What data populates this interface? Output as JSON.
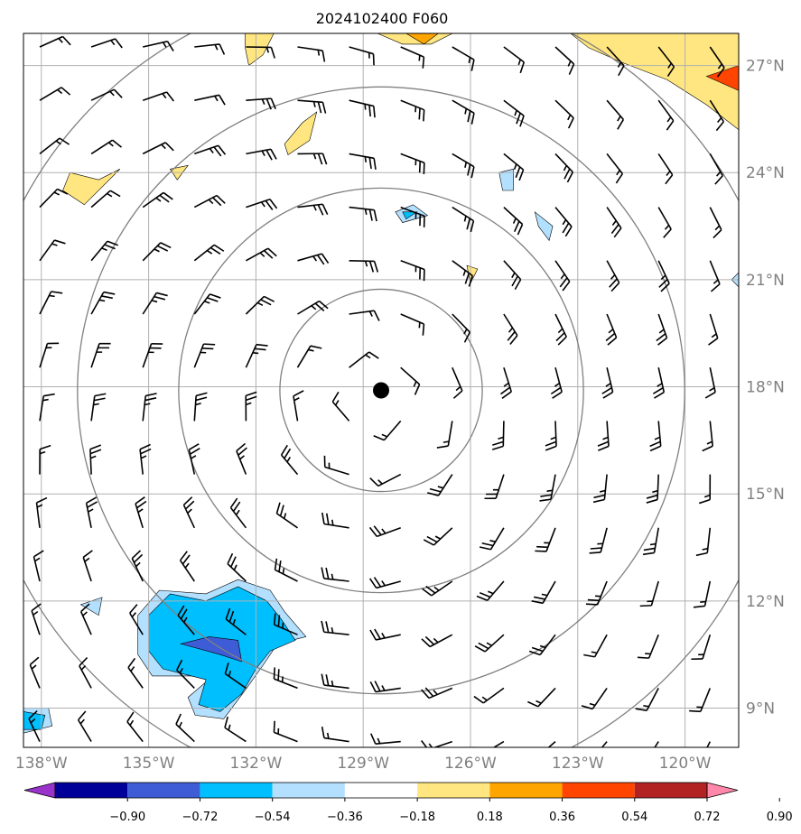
{
  "title": "2024102400 F060",
  "map": {
    "lon_range": [
      -138.5,
      -118.5
    ],
    "lat_range": [
      7.9,
      27.9
    ],
    "lon_ticks": [
      {
        "value": -138,
        "label": "138°W"
      },
      {
        "value": -135,
        "label": "135°W"
      },
      {
        "value": -132,
        "label": "132°W"
      },
      {
        "value": -129,
        "label": "129°W"
      },
      {
        "value": -126,
        "label": "126°W"
      },
      {
        "value": -123,
        "label": "123°W"
      },
      {
        "value": -120,
        "label": "120°W"
      }
    ],
    "lat_ticks": [
      {
        "value": 9,
        "label": "9°N"
      },
      {
        "value": 12,
        "label": "12°N"
      },
      {
        "value": 15,
        "label": "15°N"
      },
      {
        "value": 18,
        "label": "18°N"
      },
      {
        "value": 21,
        "label": "21°N"
      },
      {
        "value": 24,
        "label": "24°N"
      },
      {
        "value": 27,
        "label": "27°N"
      }
    ],
    "center": {
      "lon": -128.5,
      "lat": 17.9
    },
    "range_rings_deg": [
      2.83,
      5.66,
      8.49,
      11.32
    ],
    "ring_color": "#808080",
    "grid_color": "#b0b0b0",
    "barb_color": "#000000"
  },
  "colorbar": {
    "labels": [
      "−0.90",
      "−0.72",
      "−0.54",
      "−0.36",
      "−0.18",
      "0.18",
      "0.36",
      "0.54",
      "0.72",
      "0.90"
    ],
    "colors": [
      "#9933cc",
      "#000099",
      "#3d5cd6",
      "#00bfff",
      "#b3e0ff",
      "#ffffff",
      "#ffe680",
      "#ffa500",
      "#ff4500",
      "#b22222",
      "#ff88aa"
    ]
  },
  "shaded_regions": [
    {
      "level": "#ffa500",
      "polygon": [
        [
          -122.8,
          27.9
        ],
        [
          -118.5,
          27.9
        ],
        [
          -118.5,
          25.6
        ],
        [
          -119.5,
          26.2
        ],
        [
          -120.6,
          26.9
        ],
        [
          -121.8,
          27.3
        ]
      ]
    },
    {
      "level": "#ffe680",
      "polygon": [
        [
          -123.2,
          27.9
        ],
        [
          -118.5,
          27.9
        ],
        [
          -118.5,
          25.2
        ],
        [
          -119.4,
          25.9
        ],
        [
          -120.5,
          26.6
        ],
        [
          -121.8,
          27.1
        ],
        [
          -122.7,
          27.5
        ]
      ]
    },
    {
      "level": "#ff4500",
      "polygon": [
        [
          -118.5,
          27.0
        ],
        [
          -119.4,
          26.7
        ],
        [
          -118.5,
          26.3
        ]
      ]
    },
    {
      "level": "#ffe680",
      "polygon": [
        [
          -128.6,
          27.9
        ],
        [
          -126.5,
          27.9
        ],
        [
          -127.1,
          27.6
        ],
        [
          -127.9,
          27.6
        ]
      ]
    },
    {
      "level": "#ffa500",
      "polygon": [
        [
          -127.8,
          27.9
        ],
        [
          -126.9,
          27.9
        ],
        [
          -127.3,
          27.6
        ]
      ]
    },
    {
      "level": "#ffe680",
      "polygon": [
        [
          -132.3,
          27.9
        ],
        [
          -131.5,
          27.9
        ],
        [
          -131.8,
          27.3
        ],
        [
          -132.2,
          27.0
        ],
        [
          -132.3,
          27.5
        ]
      ]
    },
    {
      "level": "#ffe680",
      "polygon": [
        [
          -131.1,
          24.5
        ],
        [
          -130.5,
          24.9
        ],
        [
          -130.3,
          25.7
        ],
        [
          -130.7,
          25.4
        ],
        [
          -131.2,
          24.8
        ]
      ]
    },
    {
      "level": "#ffe680",
      "polygon": [
        [
          -137.2,
          24.0
        ],
        [
          -136.4,
          23.8
        ],
        [
          -135.8,
          24.1
        ],
        [
          -136.3,
          23.6
        ],
        [
          -136.8,
          23.1
        ],
        [
          -137.4,
          23.5
        ]
      ]
    },
    {
      "level": "#ffe680",
      "polygon": [
        [
          -134.4,
          24.1
        ],
        [
          -133.9,
          24.2
        ],
        [
          -134.2,
          23.8
        ]
      ]
    },
    {
      "level": "#ffe680",
      "polygon": [
        [
          -126.1,
          21.4
        ],
        [
          -125.8,
          21.3
        ],
        [
          -126.0,
          20.9
        ]
      ]
    },
    {
      "level": "#b3e0ff",
      "polygon": [
        [
          -128.1,
          22.9
        ],
        [
          -127.6,
          23.1
        ],
        [
          -127.2,
          22.8
        ],
        [
          -127.9,
          22.6
        ]
      ]
    },
    {
      "level": "#00bfff",
      "polygon": [
        [
          -127.9,
          22.9
        ],
        [
          -127.5,
          22.9
        ],
        [
          -127.8,
          22.7
        ]
      ]
    },
    {
      "level": "#b3e0ff",
      "polygon": [
        [
          -125.2,
          24.0
        ],
        [
          -124.8,
          24.1
        ],
        [
          -124.8,
          23.5
        ],
        [
          -125.1,
          23.5
        ]
      ]
    },
    {
      "level": "#b3e0ff",
      "polygon": [
        [
          -124.2,
          22.9
        ],
        [
          -123.7,
          22.5
        ],
        [
          -123.8,
          22.1
        ],
        [
          -124.1,
          22.5
        ]
      ]
    },
    {
      "level": "#b3e0ff",
      "polygon": [
        [
          -136.3,
          12.1
        ],
        [
          -136.9,
          11.9
        ],
        [
          -136.4,
          11.6
        ]
      ]
    },
    {
      "level": "#b3e0ff",
      "polygon": [
        [
          -134.7,
          12.3
        ],
        [
          -133.4,
          12.2
        ],
        [
          -132.5,
          12.6
        ],
        [
          -131.6,
          12.3
        ],
        [
          -131.2,
          11.7
        ],
        [
          -130.6,
          11.0
        ],
        [
          -131.4,
          10.8
        ],
        [
          -131.8,
          10.2
        ],
        [
          -132.3,
          9.5
        ],
        [
          -132.9,
          8.7
        ],
        [
          -133.7,
          8.8
        ],
        [
          -133.9,
          9.3
        ],
        [
          -133.2,
          9.9
        ],
        [
          -134.9,
          9.9
        ],
        [
          -135.3,
          10.5
        ],
        [
          -135.3,
          11.6
        ]
      ]
    },
    {
      "level": "#00bfff",
      "polygon": [
        [
          -134.4,
          12.2
        ],
        [
          -133.4,
          12.0
        ],
        [
          -132.5,
          12.4
        ],
        [
          -131.7,
          12.0
        ],
        [
          -131.3,
          11.5
        ],
        [
          -130.9,
          10.9
        ],
        [
          -131.6,
          10.6
        ],
        [
          -132.0,
          10.1
        ],
        [
          -132.4,
          9.4
        ],
        [
          -133.0,
          8.9
        ],
        [
          -133.6,
          9.1
        ],
        [
          -133.4,
          9.8
        ],
        [
          -134.6,
          10.1
        ],
        [
          -135.0,
          10.6
        ],
        [
          -135.0,
          11.6
        ]
      ]
    },
    {
      "level": "#3d5cd6",
      "polygon": [
        [
          -134.1,
          10.8
        ],
        [
          -133.3,
          11.0
        ],
        [
          -132.5,
          10.9
        ],
        [
          -132.4,
          10.3
        ],
        [
          -133.0,
          10.5
        ]
      ]
    },
    {
      "level": "#b3e0ff",
      "polygon": [
        [
          -138.5,
          9.0
        ],
        [
          -137.8,
          9.0
        ],
        [
          -137.7,
          8.5
        ],
        [
          -138.5,
          8.3
        ]
      ]
    },
    {
      "level": "#00bfff",
      "polygon": [
        [
          -138.5,
          8.9
        ],
        [
          -137.9,
          8.8
        ],
        [
          -138.0,
          8.4
        ],
        [
          -138.5,
          8.4
        ]
      ]
    },
    {
      "level": "#b3e0ff",
      "polygon": [
        [
          -118.5,
          21.2
        ],
        [
          -118.7,
          21.0
        ],
        [
          -118.5,
          20.8
        ]
      ]
    }
  ]
}
